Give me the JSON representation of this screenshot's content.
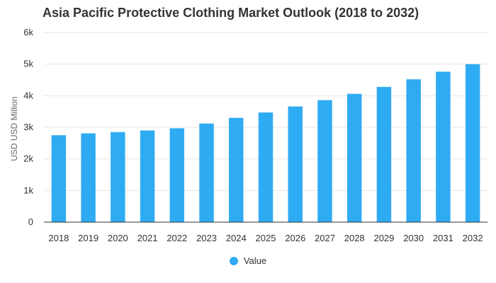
{
  "chart_data": {
    "type": "bar",
    "title": "Asia Pacific Protective Clothing Market Outlook (2018 to 2032)",
    "xlabel": "",
    "ylabel": "USD USD Million",
    "categories": [
      "2018",
      "2019",
      "2020",
      "2021",
      "2022",
      "2023",
      "2024",
      "2025",
      "2026",
      "2027",
      "2028",
      "2029",
      "2030",
      "2031",
      "2032"
    ],
    "series": [
      {
        "name": "Value",
        "color": "#2eabf2",
        "values": [
          2750,
          2810,
          2850,
          2900,
          2970,
          3120,
          3300,
          3470,
          3660,
          3860,
          4060,
          4280,
          4520,
          4760,
          5000
        ]
      }
    ],
    "ylim": [
      0,
      6000
    ],
    "yticks": [
      0,
      1000,
      2000,
      3000,
      4000,
      5000,
      6000
    ],
    "ytick_labels": [
      "0",
      "1k",
      "2k",
      "3k",
      "4k",
      "5k",
      "6k"
    ],
    "grid": true,
    "legend_position": "bottom-center"
  }
}
